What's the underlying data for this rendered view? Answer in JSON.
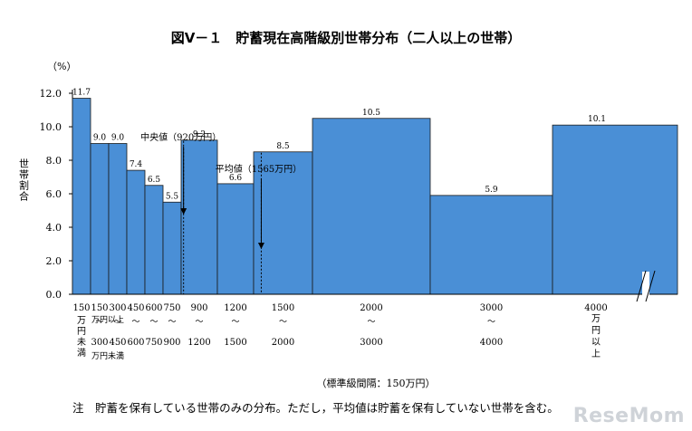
{
  "chart_data": {
    "type": "bar",
    "title": "図Ⅴ－１　貯蓄現在高階級別世帯分布（二人以上の世帯）",
    "ylabel": "世帯割合",
    "y_unit": "（%）",
    "ylim": [
      0,
      12
    ],
    "y_ticks": [
      "0.0",
      "2.0",
      "4.0",
      "6.0",
      "8.0",
      "10.0",
      "12.0"
    ],
    "bar_color": "#4a8fd6",
    "categories": [
      "150万円未満",
      "150〜300",
      "300〜450",
      "450〜600",
      "600〜750",
      "750〜900",
      "900〜1200",
      "1200〜1500",
      "1500〜2000",
      "2000〜3000",
      "3000〜4000",
      "4000万円以上"
    ],
    "values": [
      11.7,
      9.0,
      9.0,
      7.4,
      6.5,
      5.5,
      9.2,
      6.6,
      8.5,
      10.5,
      5.9,
      10.1
    ],
    "value_labels": [
      "11.7",
      "9.0",
      "9.0",
      "7.4",
      "6.5",
      "5.5",
      "9.2",
      "6.6",
      "8.5",
      "10.5",
      "5.9",
      "10.1"
    ],
    "x_tick_top": [
      "150",
      "150",
      "300",
      "450",
      "600",
      "750",
      "900",
      "1200",
      "1500",
      "2000",
      "3000",
      "4000"
    ],
    "x_tick_bottom": [
      "",
      "300",
      "450",
      "600",
      "750",
      "900",
      "1200",
      "1500",
      "2000",
      "3000",
      "4000",
      ""
    ],
    "x_tick_sep": "〜",
    "x_note_first": "万円未満",
    "x_note_low_top": "万円以上",
    "x_note_low_bottom": "万円未満",
    "x_note_last": "万円以上",
    "annotations": [
      {
        "label": "中央値（920万円）",
        "value": 920
      },
      {
        "label": "平均値（1565万円）",
        "value": 1565
      }
    ],
    "interval_note": "（標準級間隔：150万円）",
    "footnote": "注　貯蓄を保有している世帯のみの分布。ただし，平均値は貯蓄を保有していない世帯を含む。"
  },
  "watermark": "ReseMom"
}
